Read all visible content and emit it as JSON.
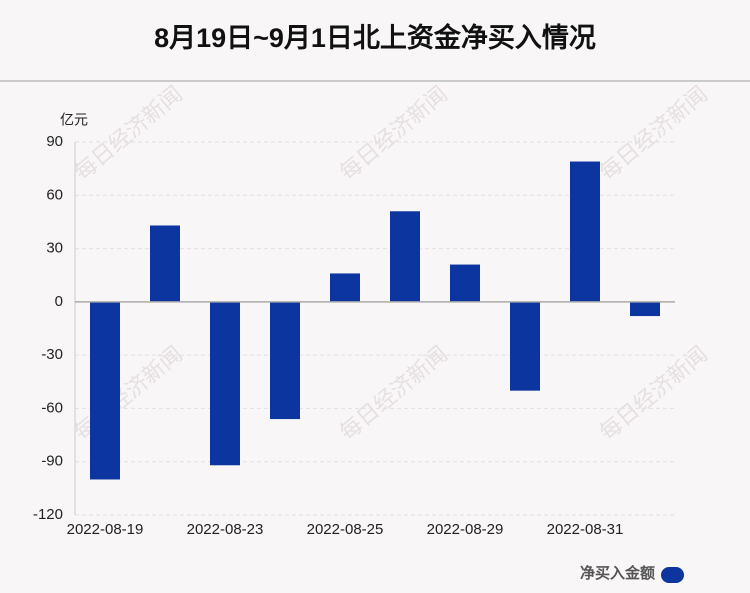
{
  "chart_data": {
    "type": "bar",
    "title": "8月19日~9月1日北上资金净买入情况",
    "y_label": "亿元",
    "watermark": "每日经济新闻",
    "categories": [
      "2022-08-19",
      null,
      "2022-08-23",
      null,
      "2022-08-25",
      null,
      "2022-08-29",
      null,
      "2022-08-31",
      null
    ],
    "series": [
      {
        "name": "净买入金额",
        "color": "#0c35a0",
        "values": [
          -100,
          43,
          -92,
          -66,
          16,
          51,
          21,
          -50,
          79,
          -8
        ]
      }
    ],
    "ylim": [
      -120,
      90
    ],
    "yticks": [
      -120,
      -90,
      -60,
      -30,
      0,
      30,
      60,
      90
    ],
    "grid": true,
    "legend": "bottom-right"
  }
}
